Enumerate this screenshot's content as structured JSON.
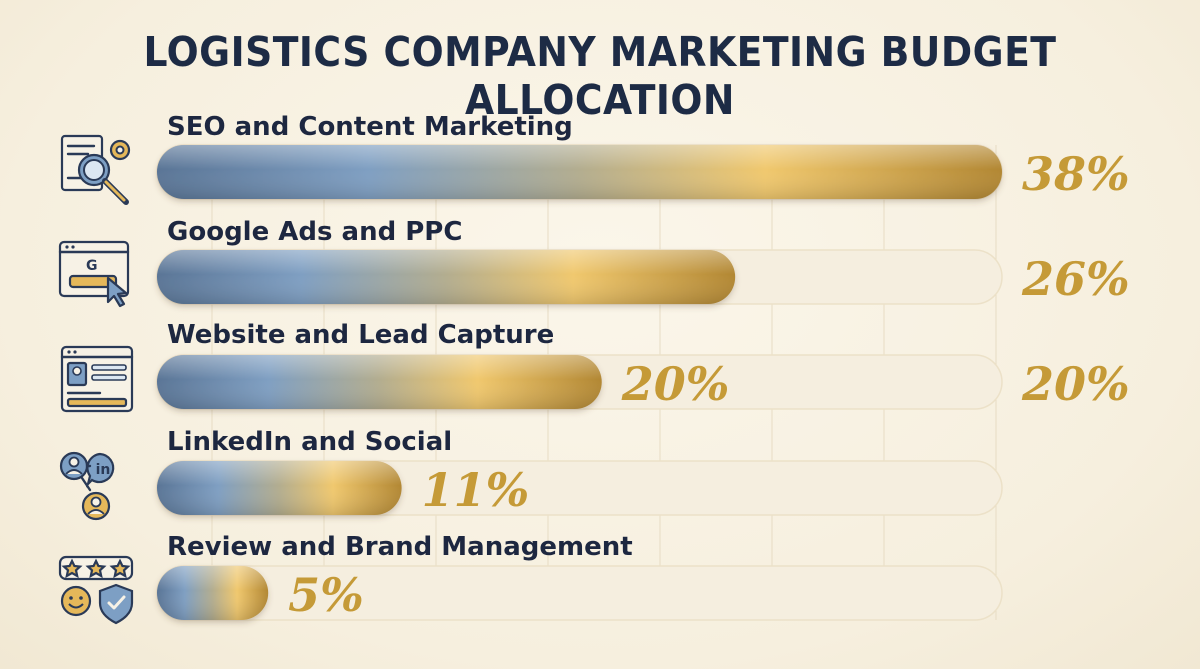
{
  "chart_data": {
    "type": "bar",
    "orientation": "horizontal",
    "title": "LOGISTICS COMPANY MARKETING BUDGET ALLOCATION",
    "categories": [
      "SEO and Content Marketing",
      "Google Ads and PPC",
      "Website and Lead Capture",
      "LinkedIn and Social",
      "Review and Brand Management"
    ],
    "values": [
      38,
      26,
      20,
      11,
      5
    ],
    "value_labels": [
      "38%",
      "26%",
      "20%",
      "11%",
      "5%"
    ],
    "icons": [
      "seo-document-search-icon",
      "google-ads-click-icon",
      "website-form-icon",
      "linkedin-network-icon",
      "review-stars-shield-icon"
    ],
    "extra_annotation": "20%",
    "xlim": [
      0,
      38
    ],
    "unit": "%",
    "grid": true,
    "colors": {
      "bar_start": "#5d7a9c",
      "bar_mid": "#eec56b",
      "bar_end": "#b58a35",
      "track": "#f3ecdc",
      "label": "#c59a37",
      "title": "#1d2b45"
    }
  }
}
